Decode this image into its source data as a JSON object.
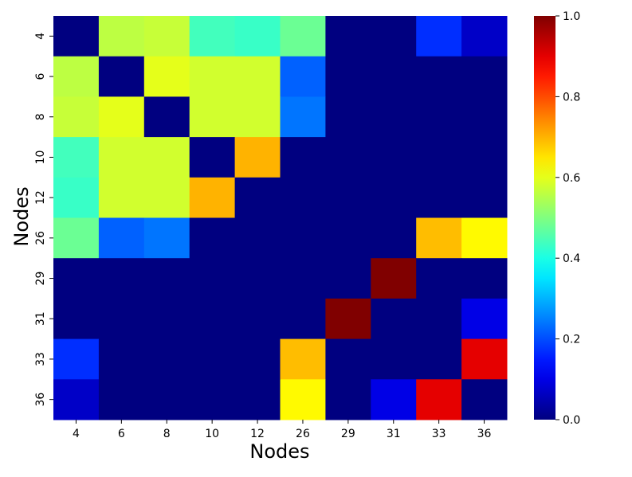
{
  "chart_data": {
    "type": "heatmap",
    "title": "",
    "xlabel": "Nodes",
    "ylabel": "Nodes",
    "x_categories": [
      "4",
      "6",
      "8",
      "10",
      "12",
      "26",
      "29",
      "31",
      "33",
      "36"
    ],
    "y_categories": [
      "4",
      "6",
      "8",
      "10",
      "12",
      "26",
      "29",
      "31",
      "33",
      "36"
    ],
    "values": [
      [
        0.0,
        0.56,
        0.57,
        0.44,
        0.43,
        0.48,
        0.0,
        0.0,
        0.17,
        0.07
      ],
      [
        0.56,
        0.0,
        0.6,
        0.58,
        0.58,
        0.22,
        0.0,
        0.0,
        0.0,
        0.0
      ],
      [
        0.57,
        0.6,
        0.0,
        0.58,
        0.58,
        0.24,
        0.0,
        0.0,
        0.0,
        0.0
      ],
      [
        0.44,
        0.58,
        0.58,
        0.0,
        0.7,
        0.0,
        0.0,
        0.0,
        0.0,
        0.0
      ],
      [
        0.43,
        0.58,
        0.58,
        0.7,
        0.0,
        0.0,
        0.0,
        0.0,
        0.0,
        0.0
      ],
      [
        0.48,
        0.22,
        0.24,
        0.0,
        0.0,
        0.0,
        0.0,
        0.0,
        0.69,
        0.63
      ],
      [
        0.0,
        0.0,
        0.0,
        0.0,
        0.0,
        0.0,
        0.0,
        1.0,
        0.0,
        0.0
      ],
      [
        0.0,
        0.0,
        0.0,
        0.0,
        0.0,
        0.0,
        1.0,
        0.0,
        0.0,
        0.1
      ],
      [
        0.17,
        0.0,
        0.0,
        0.0,
        0.0,
        0.69,
        0.0,
        0.0,
        0.0,
        0.9
      ],
      [
        0.07,
        0.0,
        0.0,
        0.0,
        0.0,
        0.63,
        0.0,
        0.1,
        0.9,
        0.0
      ]
    ],
    "colormap": "jet",
    "colorbar": {
      "range": [
        0.0,
        1.0
      ],
      "ticks": [
        "0.0",
        "0.2",
        "0.4",
        "0.6",
        "0.8",
        "1.0"
      ]
    },
    "grid": false
  }
}
